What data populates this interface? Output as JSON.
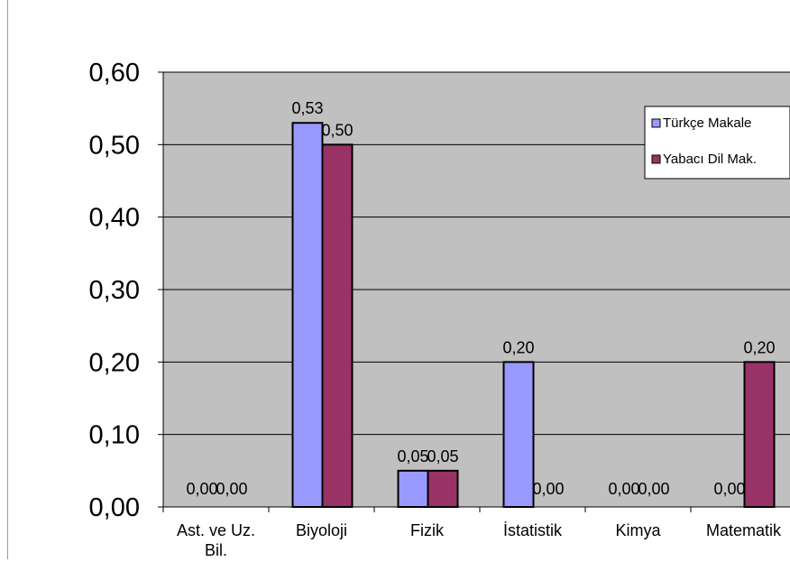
{
  "chart_data": {
    "type": "bar",
    "categories": [
      "Ast. ve Uz. Bil.",
      "Biyoloji",
      "Fizik",
      "İstatistik",
      "Kimya",
      "Matematik"
    ],
    "series": [
      {
        "name": "Türkçe Makale",
        "values": [
          0.0,
          0.53,
          0.05,
          0.2,
          0.0,
          0.0
        ],
        "color": "#9999ff",
        "labels": [
          "0,00",
          "0,53",
          "0,05",
          "0,20",
          "0,00",
          "0,00"
        ]
      },
      {
        "name": "Yabacı Dil Mak.",
        "values": [
          0.0,
          0.5,
          0.05,
          0.0,
          0.0,
          0.2
        ],
        "color": "#993366",
        "labels": [
          "0,00",
          "0,50",
          "0,05",
          "0,00",
          "0,00",
          "0,20"
        ]
      }
    ],
    "ylim": [
      0,
      0.6
    ],
    "yticks": [
      "0,00",
      "0,10",
      "0,20",
      "0,30",
      "0,40",
      "0,50",
      "0,60"
    ],
    "grid": true,
    "legend_position": "top-right",
    "plot_background": "#c0c0c0"
  }
}
